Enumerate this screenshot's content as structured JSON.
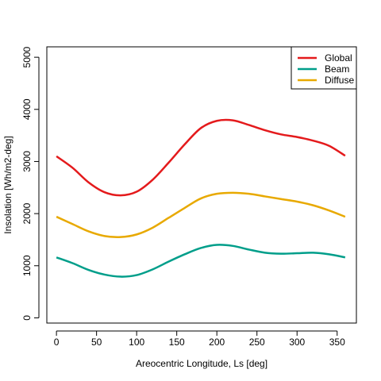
{
  "chart_data": {
    "type": "line",
    "title": "",
    "xlabel": "Areocentric Longitude, Ls [deg]",
    "ylabel": "Insolation [Wh/m2-deg]",
    "xlim": [
      -12,
      374
    ],
    "ylim": [
      -100,
      5200
    ],
    "xticks": [
      0,
      50,
      100,
      150,
      200,
      250,
      300,
      350
    ],
    "yticks": [
      0,
      1000,
      2000,
      3000,
      4000,
      5000
    ],
    "grid": false,
    "legend_position": "top-right",
    "series": [
      {
        "name": "Global",
        "color": "#e41a1c",
        "x": [
          0,
          20,
          40,
          60,
          80,
          100,
          120,
          140,
          160,
          180,
          200,
          220,
          240,
          260,
          280,
          300,
          320,
          340,
          360
        ],
        "y": [
          3100,
          2880,
          2600,
          2410,
          2350,
          2420,
          2650,
          2980,
          3330,
          3640,
          3780,
          3790,
          3700,
          3600,
          3520,
          3470,
          3400,
          3300,
          3110
        ]
      },
      {
        "name": "Beam",
        "color": "#009e8a",
        "x": [
          0,
          20,
          40,
          60,
          80,
          100,
          120,
          140,
          160,
          180,
          200,
          220,
          240,
          260,
          280,
          300,
          320,
          340,
          360
        ],
        "y": [
          1160,
          1050,
          920,
          830,
          790,
          820,
          930,
          1080,
          1220,
          1340,
          1400,
          1380,
          1310,
          1250,
          1230,
          1240,
          1250,
          1220,
          1160
        ]
      },
      {
        "name": "Diffuse",
        "color": "#e8a900",
        "x": [
          0,
          20,
          40,
          60,
          80,
          100,
          120,
          140,
          160,
          180,
          200,
          220,
          240,
          260,
          280,
          300,
          320,
          340,
          360
        ],
        "y": [
          1940,
          1800,
          1660,
          1570,
          1550,
          1600,
          1730,
          1920,
          2110,
          2290,
          2380,
          2400,
          2380,
          2330,
          2280,
          2230,
          2160,
          2060,
          1940
        ]
      }
    ]
  }
}
